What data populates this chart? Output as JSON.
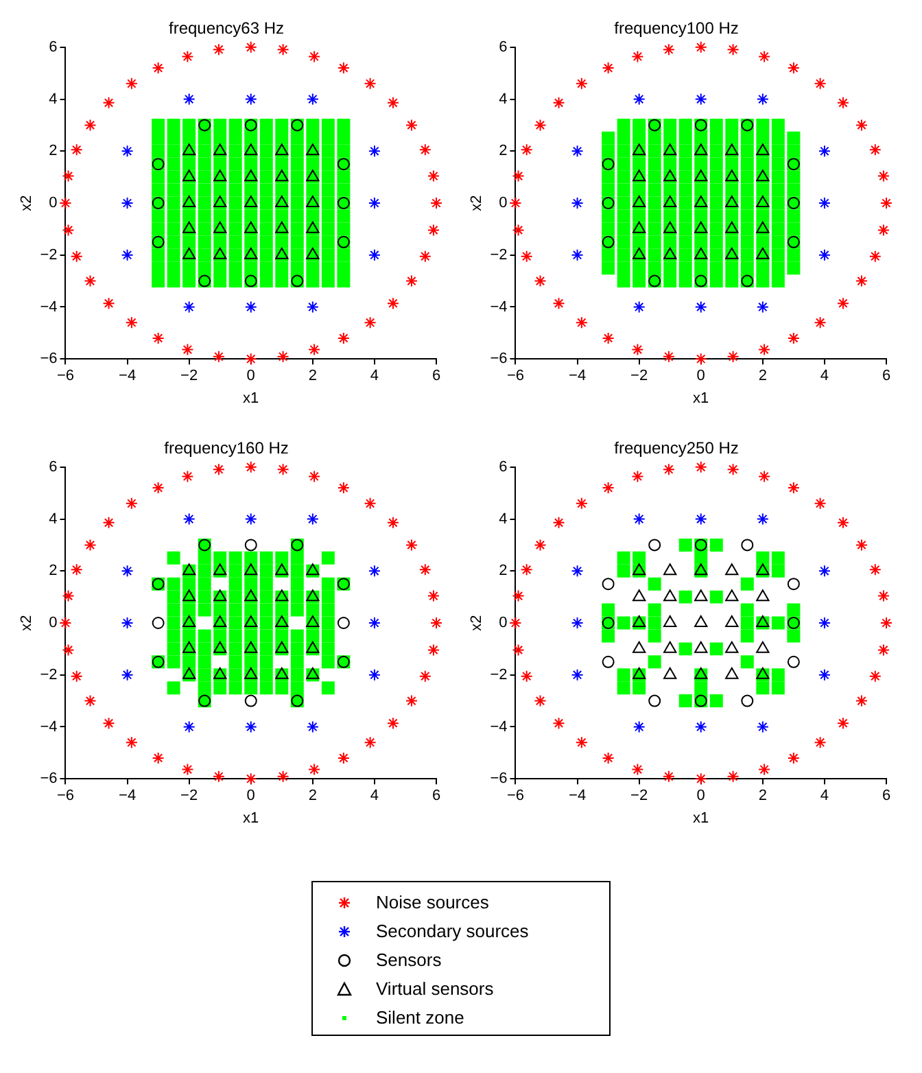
{
  "chart_data": [
    {
      "type": "scatter",
      "title": "frequency63 Hz",
      "xlabel": "x1",
      "ylabel": "x2",
      "xlim": [
        -6,
        6
      ],
      "ylim": [
        -6,
        6
      ],
      "xticks": [
        -6,
        -4,
        -2,
        0,
        2,
        4,
        6
      ],
      "yticks": [
        -6,
        -4,
        -2,
        0,
        2,
        4,
        6
      ],
      "grid": false,
      "legend": "bottom",
      "series": [
        {
          "name": "Noise sources",
          "color": "#ff0000",
          "marker": "cross",
          "x": [
            6,
            5.91,
            5.64,
            5.2,
            4.6,
            3.86,
            3,
            2.05,
            1.04,
            0,
            -1.04,
            -2.05,
            -3,
            -3.86,
            -4.6,
            -5.2,
            -5.64,
            -5.91,
            -6,
            -5.91,
            -5.64,
            -5.2,
            -4.6,
            -3.86,
            -3,
            -2.05,
            -1.04,
            0,
            1.04,
            2.05,
            3,
            3.86,
            4.6,
            5.2,
            5.64,
            5.91
          ],
          "values": [
            0,
            1.04,
            2.05,
            3,
            3.86,
            4.6,
            5.2,
            5.64,
            5.91,
            6,
            5.91,
            5.64,
            5.2,
            4.6,
            3.86,
            3,
            2.05,
            1.04,
            0,
            -1.04,
            -2.05,
            -3,
            -3.86,
            -4.6,
            -5.2,
            -5.64,
            -5.91,
            -6,
            -5.91,
            -5.64,
            -5.2,
            -4.6,
            -3.86,
            -3,
            -2.05,
            -1.04
          ]
        },
        {
          "name": "Secondary sources",
          "color": "#0000ff",
          "marker": "cross",
          "x": [
            -2,
            0,
            2,
            -4,
            4,
            -4,
            4,
            -4,
            4,
            -2,
            0,
            2
          ],
          "values": [
            4,
            4,
            4,
            2,
            2,
            0,
            0,
            -2,
            -2,
            -4,
            -4,
            -4
          ]
        },
        {
          "name": "Sensors",
          "color": "#000000",
          "marker": "circle",
          "x": [
            -1.5,
            0,
            1.5,
            -3,
            3,
            -3,
            3,
            -3,
            3,
            -1.5,
            0,
            1.5
          ],
          "values": [
            3,
            3,
            3,
            1.5,
            1.5,
            0,
            0,
            -1.5,
            -1.5,
            -3,
            -3,
            -3
          ]
        },
        {
          "name": "Virtual sensors",
          "color": "#000000",
          "marker": "triangle",
          "x": [
            -2,
            -1,
            0,
            1,
            2,
            -2,
            -1,
            0,
            1,
            2,
            -2,
            -1,
            0,
            1,
            2,
            -2,
            -1,
            0,
            1,
            2,
            -2,
            -1,
            0,
            1,
            2
          ],
          "values": [
            2,
            2,
            2,
            2,
            2,
            1,
            1,
            1,
            1,
            1,
            0,
            0,
            0,
            0,
            0,
            -1,
            -1,
            -1,
            -1,
            -1,
            -2,
            -2,
            -2,
            -2,
            -2
          ]
        },
        {
          "name": "Silent zone",
          "color": "#00ff00",
          "marker": "square",
          "x": [
            -3,
            -2.5,
            -2,
            -1.5,
            -1,
            -0.5,
            0,
            0.5,
            1,
            1.5,
            2,
            2.5,
            3,
            -3,
            -2.5,
            -2,
            -1.5,
            -1,
            -0.5,
            0,
            0.5,
            1,
            1.5,
            2,
            2.5,
            3,
            -3,
            -2.5,
            -2,
            -1.5,
            -1,
            -0.5,
            0,
            0.5,
            1,
            1.5,
            2,
            2.5,
            3,
            -3,
            -2.5,
            -2,
            -1.5,
            -1,
            -0.5,
            0,
            0.5,
            1,
            1.5,
            2,
            2.5,
            3,
            -3,
            -2.5,
            -2,
            -1.5,
            -1,
            -0.5,
            0,
            0.5,
            1,
            1.5,
            2,
            2.5,
            3,
            -3,
            -2.5,
            -2,
            -1.5,
            -1,
            -0.5,
            0,
            0.5,
            1,
            1.5,
            2,
            2.5,
            3,
            -3,
            -2.5,
            -2,
            -1.5,
            -1,
            -0.5,
            0,
            0.5,
            1,
            1.5,
            2,
            2.5,
            3,
            -3,
            -2.5,
            -2,
            -1.5,
            -1,
            -0.5,
            0,
            0.5,
            1,
            1.5,
            2,
            2.5,
            3,
            -3,
            -2.5,
            -2,
            -1.5,
            -1,
            -0.5,
            0,
            0.5,
            1,
            1.5,
            2,
            2.5,
            3,
            -3,
            -2.5,
            -2,
            -1.5,
            -1,
            -0.5,
            0,
            0.5,
            1,
            1.5,
            2,
            2.5,
            3,
            -3,
            -2.5,
            -2,
            -1.5,
            -1,
            -0.5,
            0,
            0.5,
            1,
            1.5,
            2,
            2.5,
            3,
            -3,
            -2.5,
            -2,
            -1.5,
            -1,
            -0.5,
            0,
            0.5,
            1,
            1.5,
            2,
            2.5,
            3,
            -3,
            -2.5,
            -2,
            -1.5,
            -1,
            -0.5,
            0,
            0.5,
            1,
            1.5,
            2,
            2.5,
            3
          ],
          "values": [
            3,
            3,
            3,
            3,
            3,
            3,
            3,
            3,
            3,
            3,
            3,
            3,
            3,
            2.5,
            2.5,
            2.5,
            2.5,
            2.5,
            2.5,
            2.5,
            2.5,
            2.5,
            2.5,
            2.5,
            2.5,
            2.5,
            2,
            2,
            2,
            2,
            2,
            2,
            2,
            2,
            2,
            2,
            2,
            2,
            2,
            1.5,
            1.5,
            1.5,
            1.5,
            1.5,
            1.5,
            1.5,
            1.5,
            1.5,
            1.5,
            1.5,
            1.5,
            1.5,
            1,
            1,
            1,
            1,
            1,
            1,
            1,
            1,
            1,
            1,
            1,
            1,
            1,
            0.5,
            0.5,
            0.5,
            0.5,
            0.5,
            0.5,
            0.5,
            0.5,
            0.5,
            0.5,
            0.5,
            0.5,
            0.5,
            0,
            0,
            0,
            0,
            0,
            0,
            0,
            0,
            0,
            0,
            0,
            0,
            0,
            -0.5,
            -0.5,
            -0.5,
            -0.5,
            -0.5,
            -0.5,
            -0.5,
            -0.5,
            -0.5,
            -0.5,
            -0.5,
            -0.5,
            -0.5,
            -1,
            -1,
            -1,
            -1,
            -1,
            -1,
            -1,
            -1,
            -1,
            -1,
            -1,
            -1,
            -1,
            -1.5,
            -1.5,
            -1.5,
            -1.5,
            -1.5,
            -1.5,
            -1.5,
            -1.5,
            -1.5,
            -1.5,
            -1.5,
            -1.5,
            -1.5,
            -2,
            -2,
            -2,
            -2,
            -2,
            -2,
            -2,
            -2,
            -2,
            -2,
            -2,
            -2,
            -2,
            -2.5,
            -2.5,
            -2.5,
            -2.5,
            -2.5,
            -2.5,
            -2.5,
            -2.5,
            -2.5,
            -2.5,
            -2.5,
            -2.5,
            -2.5,
            -3,
            -3,
            -3,
            -3,
            -3,
            -3,
            -3,
            -3,
            -3,
            -3,
            -3,
            -3,
            -3
          ]
        }
      ]
    },
    {
      "type": "scatter",
      "title": "frequency100 Hz",
      "xlabel": "x1",
      "ylabel": "x2",
      "xlim": [
        -6,
        6
      ],
      "ylim": [
        -6,
        6
      ],
      "xticks": [
        -6,
        -4,
        -2,
        0,
        2,
        4,
        6
      ],
      "yticks": [
        -6,
        -4,
        -2,
        0,
        2,
        4,
        6
      ],
      "grid": false,
      "series": [
        {
          "color": "#ff0000",
          "marker": "cross",
          "x": [
            6,
            5.91,
            5.64,
            5.2,
            4.6,
            3.86,
            3,
            2.05,
            1.04,
            0,
            -1.04,
            -2.05,
            -3,
            -3.86,
            -4.6,
            -5.2,
            -5.64,
            -5.91,
            -6,
            -5.91,
            -5.64,
            -5.2,
            -4.6,
            -3.86,
            -3,
            -2.05,
            -1.04,
            0,
            1.04,
            2.05,
            3,
            3.86,
            4.6,
            5.2,
            5.64,
            5.91
          ],
          "values": [
            0,
            1.04,
            2.05,
            3,
            3.86,
            4.6,
            5.2,
            5.64,
            5.91,
            6,
            5.91,
            5.64,
            5.2,
            4.6,
            3.86,
            3,
            2.05,
            1.04,
            0,
            -1.04,
            -2.05,
            -3,
            -3.86,
            -4.6,
            -5.2,
            -5.64,
            -5.91,
            -6,
            -5.91,
            -5.64,
            -5.2,
            -4.6,
            -3.86,
            -3,
            -2.05,
            -1.04
          ]
        },
        {
          "color": "#0000ff",
          "marker": "cross",
          "x": [
            -2,
            0,
            2,
            -4,
            4,
            -4,
            4,
            -4,
            4,
            -2,
            0,
            2
          ],
          "values": [
            4,
            4,
            4,
            2,
            2,
            0,
            0,
            -2,
            -2,
            -4,
            -4,
            -4
          ]
        },
        {
          "color": "#000000",
          "marker": "circle",
          "x": [
            -1.5,
            0,
            1.5,
            -3,
            3,
            -3,
            3,
            -3,
            3,
            -1.5,
            0,
            1.5
          ],
          "values": [
            3,
            3,
            3,
            1.5,
            1.5,
            0,
            0,
            -1.5,
            -1.5,
            -3,
            -3,
            -3
          ]
        },
        {
          "color": "#000000",
          "marker": "triangle",
          "x": [
            -2,
            -1,
            0,
            1,
            2,
            -2,
            -1,
            0,
            1,
            2,
            -2,
            -1,
            0,
            1,
            2,
            -2,
            -1,
            0,
            1,
            2,
            -2,
            -1,
            0,
            1,
            2
          ],
          "values": [
            2,
            2,
            2,
            2,
            2,
            1,
            1,
            1,
            1,
            1,
            0,
            0,
            0,
            0,
            0,
            -1,
            -1,
            -1,
            -1,
            -1,
            -2,
            -2,
            -2,
            -2,
            -2
          ]
        },
        {
          "color": "#00ff00",
          "marker": "square",
          "x": [
            -2.5,
            -2,
            -1.5,
            -1,
            -0.5,
            0,
            0.5,
            1,
            1.5,
            2,
            2.5,
            -3,
            -2.5,
            -2,
            -1.5,
            -1,
            -0.5,
            0,
            0.5,
            1,
            1.5,
            2,
            2.5,
            3,
            -3,
            -2.5,
            -2,
            -1.5,
            -1,
            -0.5,
            0,
            0.5,
            1,
            1.5,
            2,
            2.5,
            3,
            -3,
            -2.5,
            -2,
            -1.5,
            -1,
            -0.5,
            0,
            0.5,
            1,
            1.5,
            2,
            2.5,
            3,
            -3,
            -2.5,
            -2,
            -1.5,
            -1,
            -0.5,
            0,
            0.5,
            1,
            1.5,
            2,
            2.5,
            3,
            -3,
            -2.5,
            -2,
            -1.5,
            -1,
            -0.5,
            0,
            0.5,
            1,
            1.5,
            2,
            2.5,
            3,
            -3,
            -2.5,
            -2,
            -1.5,
            -1,
            -0.5,
            0,
            0.5,
            1,
            1.5,
            2,
            2.5,
            3,
            -3,
            -2.5,
            -2,
            -1.5,
            -1,
            -0.5,
            0,
            0.5,
            1,
            1.5,
            2,
            2.5,
            3,
            -3,
            -2.5,
            -2,
            -1.5,
            -1,
            -0.5,
            0,
            0.5,
            1,
            1.5,
            2,
            2.5,
            3,
            -3,
            -2.5,
            -2,
            -1.5,
            -1,
            -0.5,
            0,
            0.5,
            1,
            1.5,
            2,
            2.5,
            3,
            -3,
            -2.5,
            -2,
            -1.5,
            -1,
            -0.5,
            0,
            0.5,
            1,
            1.5,
            2,
            2.5,
            3,
            -3,
            -2.5,
            -2,
            -1.5,
            -1,
            -0.5,
            0,
            0.5,
            1,
            1.5,
            2,
            2.5,
            3,
            -2.5,
            -2,
            -1.5,
            -1,
            -0.5,
            0,
            0.5,
            1,
            1.5,
            2,
            2.5
          ],
          "values": [
            3,
            3,
            3,
            3,
            3,
            3,
            3,
            3,
            3,
            3,
            3,
            2.5,
            2.5,
            2.5,
            2.5,
            2.5,
            2.5,
            2.5,
            2.5,
            2.5,
            2.5,
            2.5,
            2.5,
            2.5,
            2,
            2,
            2,
            2,
            2,
            2,
            2,
            2,
            2,
            2,
            2,
            2,
            2,
            1.5,
            1.5,
            1.5,
            1.5,
            1.5,
            1.5,
            1.5,
            1.5,
            1.5,
            1.5,
            1.5,
            1.5,
            1.5,
            1,
            1,
            1,
            1,
            1,
            1,
            1,
            1,
            1,
            1,
            1,
            1,
            1,
            0.5,
            0.5,
            0.5,
            0.5,
            0.5,
            0.5,
            0.5,
            0.5,
            0.5,
            0.5,
            0.5,
            0.5,
            0.5,
            0,
            0,
            0,
            0,
            0,
            0,
            0,
            0,
            0,
            0,
            0,
            0,
            0,
            -0.5,
            -0.5,
            -0.5,
            -0.5,
            -0.5,
            -0.5,
            -0.5,
            -0.5,
            -0.5,
            -0.5,
            -0.5,
            -0.5,
            -0.5,
            -1,
            -1,
            -1,
            -1,
            -1,
            -1,
            -1,
            -1,
            -1,
            -1,
            -1,
            -1,
            -1,
            -1.5,
            -1.5,
            -1.5,
            -1.5,
            -1.5,
            -1.5,
            -1.5,
            -1.5,
            -1.5,
            -1.5,
            -1.5,
            -1.5,
            -1.5,
            -2,
            -2,
            -2,
            -2,
            -2,
            -2,
            -2,
            -2,
            -2,
            -2,
            -2,
            -2,
            -2,
            -2.5,
            -2.5,
            -2.5,
            -2.5,
            -2.5,
            -2.5,
            -2.5,
            -2.5,
            -2.5,
            -2.5,
            -2.5,
            -2.5,
            -2.5,
            -3,
            -3,
            -3,
            -3,
            -3,
            -3,
            -3,
            -3,
            -3,
            -3,
            -3
          ]
        }
      ]
    },
    {
      "type": "scatter",
      "title": "frequency160 Hz",
      "xlabel": "x1",
      "ylabel": "x2",
      "xlim": [
        -6,
        6
      ],
      "ylim": [
        -6,
        6
      ],
      "xticks": [
        -6,
        -4,
        -2,
        0,
        2,
        4,
        6
      ],
      "yticks": [
        -6,
        -4,
        -2,
        0,
        2,
        4,
        6
      ],
      "grid": false,
      "series": [
        {
          "color": "#ff0000",
          "marker": "cross",
          "x": [
            6,
            5.91,
            5.64,
            5.2,
            4.6,
            3.86,
            3,
            2.05,
            1.04,
            0,
            -1.04,
            -2.05,
            -3,
            -3.86,
            -4.6,
            -5.2,
            -5.64,
            -5.91,
            -6,
            -5.91,
            -5.64,
            -5.2,
            -4.6,
            -3.86,
            -3,
            -2.05,
            -1.04,
            0,
            1.04,
            2.05,
            3,
            3.86,
            4.6,
            5.2,
            5.64,
            5.91
          ],
          "values": [
            0,
            1.04,
            2.05,
            3,
            3.86,
            4.6,
            5.2,
            5.64,
            5.91,
            6,
            5.91,
            5.64,
            5.2,
            4.6,
            3.86,
            3,
            2.05,
            1.04,
            0,
            -1.04,
            -2.05,
            -3,
            -3.86,
            -4.6,
            -5.2,
            -5.64,
            -5.91,
            -6,
            -5.91,
            -5.64,
            -5.2,
            -4.6,
            -3.86,
            -3,
            -2.05,
            -1.04
          ]
        },
        {
          "color": "#0000ff",
          "marker": "cross",
          "x": [
            -2,
            0,
            2,
            -4,
            4,
            -4,
            4,
            -4,
            4,
            -2,
            0,
            2
          ],
          "values": [
            4,
            4,
            4,
            2,
            2,
            0,
            0,
            -2,
            -2,
            -4,
            -4,
            -4
          ]
        },
        {
          "color": "#000000",
          "marker": "circle",
          "x": [
            -1.5,
            0,
            1.5,
            -3,
            3,
            -3,
            3,
            -3,
            3,
            -1.5,
            0,
            1.5
          ],
          "values": [
            3,
            3,
            3,
            1.5,
            1.5,
            0,
            0,
            -1.5,
            -1.5,
            -3,
            -3,
            -3
          ]
        },
        {
          "color": "#000000",
          "marker": "triangle",
          "x": [
            -2,
            -1,
            0,
            1,
            2,
            -2,
            -1,
            0,
            1,
            2,
            -2,
            -1,
            0,
            1,
            2,
            -2,
            -1,
            0,
            1,
            2,
            -2,
            -1,
            0,
            1,
            2
          ],
          "values": [
            2,
            2,
            2,
            2,
            2,
            1,
            1,
            1,
            1,
            1,
            0,
            0,
            0,
            0,
            0,
            -1,
            -1,
            -1,
            -1,
            -1,
            -2,
            -2,
            -2,
            -2,
            -2
          ]
        },
        {
          "color": "#00ff00",
          "marker": "square",
          "x": [
            -1.5,
            1.5,
            -2.5,
            -1.5,
            -1,
            -0.5,
            0,
            0.5,
            1,
            1.5,
            2.5,
            -2,
            -1.5,
            -1,
            -0.5,
            0,
            0.5,
            1,
            1.5,
            2,
            -3,
            -2.5,
            -2,
            -1.5,
            -0.5,
            0,
            0.5,
            1.5,
            2.5,
            3,
            -2.5,
            -2,
            -1.5,
            -1,
            -0.5,
            0,
            0.5,
            1,
            1.5,
            2,
            2.5,
            -2.5,
            -2,
            -1.5,
            -1,
            -0.5,
            0,
            0.5,
            1,
            1.5,
            2,
            2.5,
            -2.5,
            -2,
            -1,
            -0.5,
            0,
            0.5,
            1,
            2,
            2.5,
            -2.5,
            -2,
            -1.5,
            -1,
            -0.5,
            0,
            0.5,
            1,
            1.5,
            2,
            2.5,
            -2.5,
            -2,
            -1.5,
            -1,
            -0.5,
            0,
            0.5,
            1,
            1.5,
            2,
            2.5,
            -3,
            -2.5,
            -2,
            -1.5,
            -0.5,
            0,
            0.5,
            1.5,
            2.5,
            3,
            -2,
            -1.5,
            -1,
            -0.5,
            0,
            0.5,
            1,
            1.5,
            2,
            -2.5,
            -1.5,
            -1,
            -0.5,
            0,
            0.5,
            1,
            1.5,
            2.5,
            -1.5,
            1.5
          ],
          "values": [
            3,
            3,
            2.5,
            2.5,
            2.5,
            2.5,
            2.5,
            2.5,
            2.5,
            2.5,
            2.5,
            2,
            2,
            2,
            2,
            2,
            2,
            2,
            2,
            2,
            1.5,
            1.5,
            1.5,
            1.5,
            1.5,
            1.5,
            1.5,
            1.5,
            1.5,
            1.5,
            1,
            1,
            1,
            1,
            1,
            1,
            1,
            1,
            1,
            1,
            1,
            0.5,
            0.5,
            0.5,
            0.5,
            0.5,
            0.5,
            0.5,
            0.5,
            0.5,
            0.5,
            0.5,
            0,
            0,
            0,
            0,
            0,
            0,
            0,
            0,
            0,
            -0.5,
            -0.5,
            -0.5,
            -0.5,
            -0.5,
            -0.5,
            -0.5,
            -0.5,
            -0.5,
            -0.5,
            -0.5,
            -1,
            -1,
            -1,
            -1,
            -1,
            -1,
            -1,
            -1,
            -1,
            -1,
            -1,
            -1.5,
            -1.5,
            -1.5,
            -1.5,
            -1.5,
            -1.5,
            -1.5,
            -1.5,
            -1.5,
            -1.5,
            -2,
            -2,
            -2,
            -2,
            -2,
            -2,
            -2,
            -2,
            -2,
            -2.5,
            -2.5,
            -2.5,
            -2.5,
            -2.5,
            -2.5,
            -2.5,
            -2.5,
            -2.5,
            -3,
            -3
          ]
        }
      ]
    },
    {
      "type": "scatter",
      "title": "frequency250 Hz",
      "xlabel": "x1",
      "ylabel": "x2",
      "xlim": [
        -6,
        6
      ],
      "ylim": [
        -6,
        6
      ],
      "xticks": [
        -6,
        -4,
        -2,
        0,
        2,
        4,
        6
      ],
      "yticks": [
        -6,
        -4,
        -2,
        0,
        2,
        4,
        6
      ],
      "grid": false,
      "series": [
        {
          "color": "#ff0000",
          "marker": "cross",
          "x": [
            6,
            5.91,
            5.64,
            5.2,
            4.6,
            3.86,
            3,
            2.05,
            1.04,
            0,
            -1.04,
            -2.05,
            -3,
            -3.86,
            -4.6,
            -5.2,
            -5.64,
            -5.91,
            -6,
            -5.91,
            -5.64,
            -5.2,
            -4.6,
            -3.86,
            -3,
            -2.05,
            -1.04,
            0,
            1.04,
            2.05,
            3,
            3.86,
            4.6,
            5.2,
            5.64,
            5.91
          ],
          "values": [
            0,
            1.04,
            2.05,
            3,
            3.86,
            4.6,
            5.2,
            5.64,
            5.91,
            6,
            5.91,
            5.64,
            5.2,
            4.6,
            3.86,
            3,
            2.05,
            1.04,
            0,
            -1.04,
            -2.05,
            -3,
            -3.86,
            -4.6,
            -5.2,
            -5.64,
            -5.91,
            -6,
            -5.91,
            -5.64,
            -5.2,
            -4.6,
            -3.86,
            -3,
            -2.05,
            -1.04
          ]
        },
        {
          "color": "#0000ff",
          "marker": "cross",
          "x": [
            -2,
            0,
            2,
            -4,
            4,
            -4,
            4,
            -4,
            4,
            -2,
            0,
            2
          ],
          "values": [
            4,
            4,
            4,
            2,
            2,
            0,
            0,
            -2,
            -2,
            -4,
            -4,
            -4
          ]
        },
        {
          "color": "#000000",
          "marker": "circle",
          "x": [
            -1.5,
            0,
            1.5,
            -3,
            3,
            -3,
            3,
            -3,
            3,
            -1.5,
            0,
            1.5
          ],
          "values": [
            3,
            3,
            3,
            1.5,
            1.5,
            0,
            0,
            -1.5,
            -1.5,
            -3,
            -3,
            -3
          ]
        },
        {
          "color": "#000000",
          "marker": "triangle",
          "x": [
            -2,
            -1,
            0,
            1,
            2,
            -2,
            -1,
            0,
            1,
            2,
            -2,
            -1,
            0,
            1,
            2,
            -2,
            -1,
            0,
            1,
            2,
            -2,
            -1,
            0,
            1,
            2
          ],
          "values": [
            2,
            2,
            2,
            2,
            2,
            1,
            1,
            1,
            1,
            1,
            0,
            0,
            0,
            0,
            0,
            -1,
            -1,
            -1,
            -1,
            -1,
            -2,
            -2,
            -2,
            -2,
            -2
          ]
        },
        {
          "color": "#00ff00",
          "marker": "square",
          "x": [
            -0.5,
            0,
            0.5,
            0,
            0,
            -0.5,
            0,
            0.5,
            0,
            0,
            -3,
            -3,
            -3,
            -2.5,
            -2,
            3,
            3,
            3,
            2.5,
            2,
            2,
            2.5,
            2,
            1.5,
            2.5,
            -2,
            -2.5,
            -2,
            -1.5,
            -2.5,
            2,
            2.5,
            2,
            1.5,
            2.5,
            -2,
            -2.5,
            -2,
            -1.5,
            -2.5,
            -1.5,
            -1.5,
            -1.5,
            1.5,
            1.5,
            1.5,
            -0.5,
            0.5,
            -0.5,
            0.5
          ],
          "values": [
            3,
            3,
            3,
            2.5,
            2,
            -3,
            -3,
            -3,
            -2.5,
            -2,
            0.5,
            0,
            -0.5,
            0,
            0,
            0.5,
            0,
            -0.5,
            0,
            0,
            2,
            2,
            2.5,
            1.5,
            2.5,
            2,
            2,
            2.5,
            1.5,
            2.5,
            -2,
            -2,
            -2.5,
            -1.5,
            -2.5,
            -2,
            -2,
            -2.5,
            -1.5,
            -2.5,
            0.5,
            0,
            -0.5,
            0.5,
            0,
            -0.5,
            1,
            1,
            -1,
            -1
          ]
        }
      ]
    }
  ]
}
